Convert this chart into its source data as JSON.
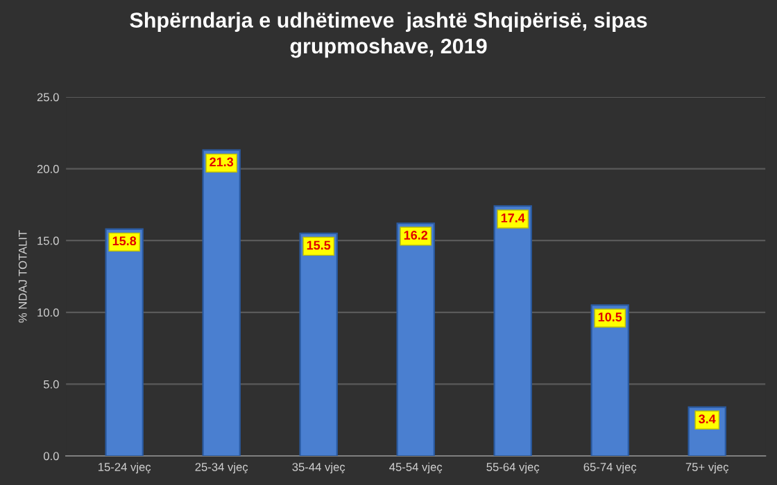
{
  "chart_data": {
    "type": "bar",
    "title": "Shpërndarja e udhëtimeve  jashtë Shqipërisë, sipas\ngrupmoshave, 2019",
    "ylabel": "% NDAJ TOTALIT",
    "categories": [
      "15-24 vjeç",
      "25-34 vjeç",
      "35-44 vjeç",
      "45-54 vjeç",
      "55-64 vjeç",
      "65-74 vjeç",
      "75+ vjeç"
    ],
    "values": [
      15.8,
      21.3,
      15.5,
      16.2,
      17.4,
      10.5,
      3.4
    ],
    "color": "#4a7fd0",
    "ylim": [
      0,
      25
    ],
    "yticks": [
      {
        "value": 0,
        "label": "0.0"
      },
      {
        "value": 5,
        "label": "5.0"
      },
      {
        "value": 10,
        "label": "10.0"
      },
      {
        "value": 15,
        "label": "15.0"
      },
      {
        "value": 20,
        "label": "20.0"
      },
      {
        "value": 25,
        "label": "25.0"
      }
    ],
    "grid": "y",
    "data_labels": true
  }
}
